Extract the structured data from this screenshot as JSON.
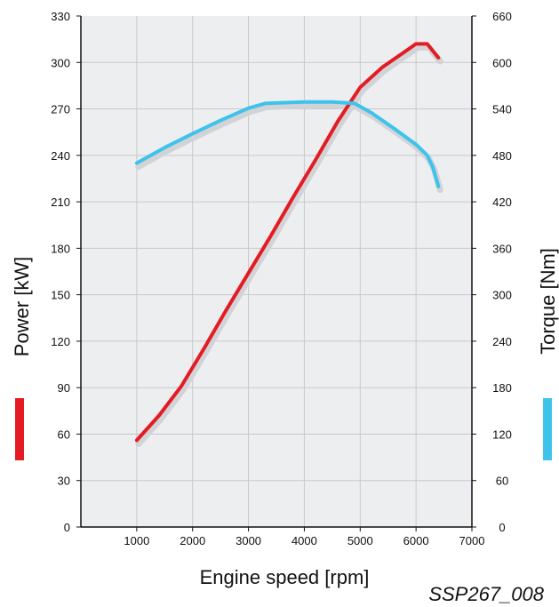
{
  "chart_data": {
    "type": "line",
    "xlabel": "Engine speed [rpm]",
    "x_ticks": [
      1000,
      2000,
      3000,
      4000,
      5000,
      6000,
      7000
    ],
    "xlim": [
      0,
      7000
    ],
    "y_left": {
      "label": "Power [kW]",
      "ticks": [
        0,
        30,
        60,
        90,
        120,
        150,
        180,
        210,
        240,
        270,
        300,
        330
      ],
      "range": [
        0,
        330
      ]
    },
    "y_right": {
      "label": "Torque [Nm]",
      "ticks": [
        0,
        60,
        120,
        180,
        240,
        300,
        360,
        420,
        480,
        540,
        600,
        660
      ],
      "range": [
        0,
        660
      ]
    },
    "grid": true,
    "series": [
      {
        "name": "Power [kW]",
        "axis": "left",
        "color": "#e31c24",
        "points": [
          [
            1000,
            56
          ],
          [
            1400,
            72
          ],
          [
            1800,
            91
          ],
          [
            2200,
            115
          ],
          [
            2600,
            140
          ],
          [
            3000,
            164
          ],
          [
            3400,
            188
          ],
          [
            3800,
            213
          ],
          [
            4200,
            237
          ],
          [
            4600,
            262
          ],
          [
            5000,
            284
          ],
          [
            5400,
            297
          ],
          [
            5800,
            307
          ],
          [
            6000,
            312
          ],
          [
            6200,
            312
          ],
          [
            6400,
            303
          ]
        ]
      },
      {
        "name": "Torque [Nm]",
        "axis": "right",
        "color": "#3ec3ed",
        "points": [
          [
            1000,
            470
          ],
          [
            1500,
            490
          ],
          [
            2000,
            508
          ],
          [
            2500,
            525
          ],
          [
            3000,
            541
          ],
          [
            3300,
            547
          ],
          [
            3600,
            548
          ],
          [
            4000,
            549
          ],
          [
            4500,
            549
          ],
          [
            4900,
            547
          ],
          [
            5200,
            535
          ],
          [
            5600,
            515
          ],
          [
            6000,
            494
          ],
          [
            6200,
            480
          ],
          [
            6300,
            465
          ],
          [
            6400,
            440
          ]
        ]
      }
    ],
    "footer_code": "SSP267_008"
  }
}
